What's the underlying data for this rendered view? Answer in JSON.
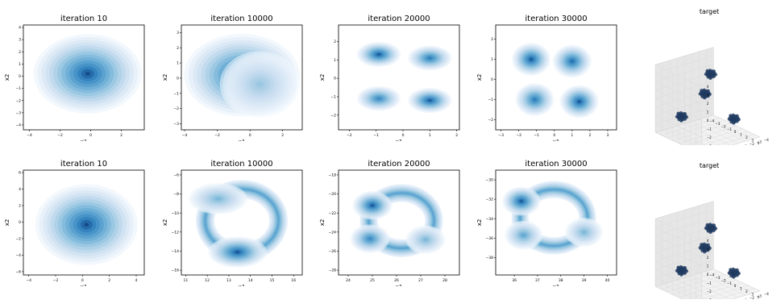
{
  "colors": {
    "frame": "#000000",
    "ink": "#08306b",
    "mid": "#4292c6",
    "light": "#deebf7"
  },
  "chart_data": [
    {
      "type": "heatmap",
      "title": "iteration 10",
      "xlabel": "x1",
      "ylabel": "x2",
      "xticks": [
        "−4",
        "−2",
        "0",
        "2"
      ],
      "yticks": [
        "4",
        "3",
        "2",
        "1",
        "0",
        "−1",
        "−2",
        "−3",
        "−4"
      ],
      "xlim": [
        -4.4,
        3.5
      ],
      "ylim": [
        -4.4,
        4.2
      ],
      "modes": [
        {
          "cx": -0.2,
          "cy": 0.2,
          "sx": 1.3,
          "sy": 1.2,
          "w": 1.0
        }
      ]
    },
    {
      "type": "heatmap",
      "title": "iteration 10000",
      "xlabel": "x1",
      "ylabel": "x2",
      "xticks": [
        "−4",
        "−2",
        "0",
        "2"
      ],
      "yticks": [
        "3",
        "2",
        "1",
        "0",
        "−1",
        "−2",
        "−3"
      ],
      "xlim": [
        -4.2,
        3.2
      ],
      "ylim": [
        -3.4,
        3.5
      ],
      "modes": [
        {
          "cx": -0.5,
          "cy": 0.2,
          "sx": 1.3,
          "sy": 1.0,
          "w": 1.0
        },
        {
          "cx": 0.6,
          "cy": -0.4,
          "sx": 0.9,
          "sy": 0.8,
          "w": 0.5
        }
      ]
    },
    {
      "type": "heatmap",
      "title": "iteration 20000",
      "xlabel": "x1",
      "ylabel": "x2",
      "xticks": [
        "−2",
        "−1",
        "0",
        "1",
        "2"
      ],
      "yticks": [
        "2",
        "1",
        "0",
        "−1",
        "−2"
      ],
      "xlim": [
        -2.4,
        2.1
      ],
      "ylim": [
        -2.8,
        2.9
      ],
      "modes": [
        {
          "cx": -0.9,
          "cy": 1.3,
          "sx": 0.3,
          "sy": 0.25,
          "w": 1.0
        },
        {
          "cx": 1.0,
          "cy": 1.1,
          "sx": 0.3,
          "sy": 0.25,
          "w": 0.9
        },
        {
          "cx": -0.9,
          "cy": -1.1,
          "sx": 0.3,
          "sy": 0.25,
          "w": 0.85
        },
        {
          "cx": 1.0,
          "cy": -1.2,
          "sx": 0.3,
          "sy": 0.25,
          "w": 1.0
        }
      ]
    },
    {
      "type": "heatmap",
      "title": "iteration 30000",
      "xlabel": "x1",
      "ylabel": "x2",
      "xticks": [
        "−3",
        "−2",
        "−1",
        "0",
        "1",
        "2",
        "3"
      ],
      "yticks": [
        "2",
        "1",
        "0",
        "−1",
        "−2"
      ],
      "xlim": [
        -3.3,
        3.5
      ],
      "ylim": [
        -2.5,
        2.7
      ],
      "modes": [
        {
          "cx": -1.3,
          "cy": 1.0,
          "sx": 0.4,
          "sy": 0.3,
          "w": 1.0
        },
        {
          "cx": 1.0,
          "cy": 0.9,
          "sx": 0.4,
          "sy": 0.3,
          "w": 0.95
        },
        {
          "cx": -1.1,
          "cy": -1.0,
          "sx": 0.4,
          "sy": 0.3,
          "w": 0.9
        },
        {
          "cx": 1.4,
          "cy": -1.1,
          "sx": 0.4,
          "sy": 0.3,
          "w": 1.0
        }
      ]
    },
    {
      "type": "scatter",
      "projection": "3d",
      "title": "target",
      "xticks": [
        "−4",
        "−3",
        "−2",
        "−1",
        "0",
        "1",
        "2",
        "3",
        "4"
      ],
      "yticks": [
        "−4",
        "−3",
        "−2",
        "−1",
        "0",
        "1",
        "2",
        "3",
        "4"
      ],
      "zticks": [
        "−4",
        "−3",
        "−2",
        "−1",
        "0",
        "1",
        "2",
        "3",
        "4"
      ],
      "xlim": [
        -4,
        4
      ],
      "ylim": [
        -4,
        4
      ],
      "zlim": [
        -4,
        4
      ],
      "clusters": [
        {
          "x": -2,
          "y": -2,
          "z": 2
        },
        {
          "x": 2,
          "y": 2,
          "z": 2
        },
        {
          "x": -2,
          "y": 2,
          "z": -2
        },
        {
          "x": 2,
          "y": -2,
          "z": -2
        }
      ]
    },
    {
      "type": "heatmap",
      "title": "iteration 10",
      "xlabel": "x1",
      "ylabel": "x2",
      "xticks": [
        "−4",
        "−2",
        "0",
        "2",
        "4"
      ],
      "yticks": [
        "6",
        "4",
        "2",
        "0",
        "−2",
        "−4",
        "−6"
      ],
      "xlim": [
        -4.4,
        4.6
      ],
      "ylim": [
        -6.4,
        6.3
      ],
      "modes": [
        {
          "cx": 0.3,
          "cy": -0.3,
          "sx": 1.4,
          "sy": 1.8,
          "w": 1.0
        }
      ]
    },
    {
      "type": "heatmap",
      "title": "iteration 10000",
      "xlabel": "x1",
      "ylabel": "x2",
      "xticks": [
        "11",
        "12",
        "13",
        "14",
        "15",
        "16"
      ],
      "yticks": [
        "−6",
        "−8",
        "−10",
        "−12",
        "−14",
        "−16"
      ],
      "xlim": [
        10.8,
        16.4
      ],
      "ylim": [
        -16.5,
        -5.5
      ],
      "ring": {
        "cx": 13.6,
        "cy": -10.8,
        "rx": 1.7,
        "ry": 3.3,
        "sx": 0.35,
        "sy": 0.7
      },
      "modes": [
        {
          "cx": 13.4,
          "cy": -14.1,
          "sx": 0.5,
          "sy": 0.6,
          "w": 1.0
        },
        {
          "cx": 12.5,
          "cy": -8.5,
          "sx": 0.5,
          "sy": 0.6,
          "w": 0.6
        }
      ]
    },
    {
      "type": "heatmap",
      "title": "iteration 20000",
      "xlabel": "x1",
      "ylabel": "x2",
      "xticks": [
        "24",
        "25",
        "26",
        "27",
        "28"
      ],
      "yticks": [
        "−18",
        "−20",
        "−22",
        "−24",
        "−26",
        "−28"
      ],
      "xlim": [
        23.6,
        28.6
      ],
      "ylim": [
        -28.5,
        -17.5
      ],
      "ring": {
        "cx": 26.2,
        "cy": -22.8,
        "rx": 1.35,
        "ry": 2.9,
        "sx": 0.3,
        "sy": 0.6
      },
      "modes": [
        {
          "cx": 25.0,
          "cy": -21.2,
          "sx": 0.3,
          "sy": 0.55,
          "w": 1.0
        },
        {
          "cx": 24.9,
          "cy": -24.7,
          "sx": 0.3,
          "sy": 0.55,
          "w": 0.85
        },
        {
          "cx": 27.2,
          "cy": -24.8,
          "sx": 0.3,
          "sy": 0.55,
          "w": 0.6
        }
      ]
    },
    {
      "type": "heatmap",
      "title": "iteration 30000",
      "xlabel": "x1",
      "ylabel": "x2",
      "xticks": [
        "36",
        "37",
        "38",
        "39",
        "40"
      ],
      "yticks": [
        "−30",
        "−32",
        "−34",
        "−36",
        "−38"
      ],
      "xlim": [
        35.2,
        40.4
      ],
      "ylim": [
        -39.8,
        -29.0
      ],
      "ring": {
        "cx": 37.7,
        "cy": -33.9,
        "rx": 1.45,
        "ry": 2.9,
        "sx": 0.3,
        "sy": 0.6
      },
      "modes": [
        {
          "cx": 36.3,
          "cy": -32.2,
          "sx": 0.3,
          "sy": 0.55,
          "w": 1.0
        },
        {
          "cx": 36.4,
          "cy": -35.7,
          "sx": 0.3,
          "sy": 0.55,
          "w": 0.7
        },
        {
          "cx": 39.0,
          "cy": -35.4,
          "sx": 0.3,
          "sy": 0.55,
          "w": 0.6
        }
      ]
    },
    {
      "type": "scatter",
      "projection": "3d",
      "title": "target",
      "xticks": [
        "−4",
        "−3",
        "−2",
        "−1",
        "0",
        "1",
        "2",
        "3",
        "4"
      ],
      "yticks": [
        "−4",
        "−3",
        "−2",
        "−1",
        "0",
        "1",
        "2",
        "3",
        "4"
      ],
      "zticks": [
        "−4",
        "−3",
        "−2",
        "−1",
        "0",
        "1",
        "2",
        "3",
        "4"
      ],
      "xlim": [
        -4,
        4
      ],
      "ylim": [
        -4,
        4
      ],
      "zlim": [
        -4,
        4
      ],
      "clusters": [
        {
          "x": -2,
          "y": -2,
          "z": 2
        },
        {
          "x": 2,
          "y": 2,
          "z": 2
        },
        {
          "x": -2,
          "y": 2,
          "z": -2
        },
        {
          "x": 2,
          "y": -2,
          "z": -2
        }
      ]
    }
  ]
}
